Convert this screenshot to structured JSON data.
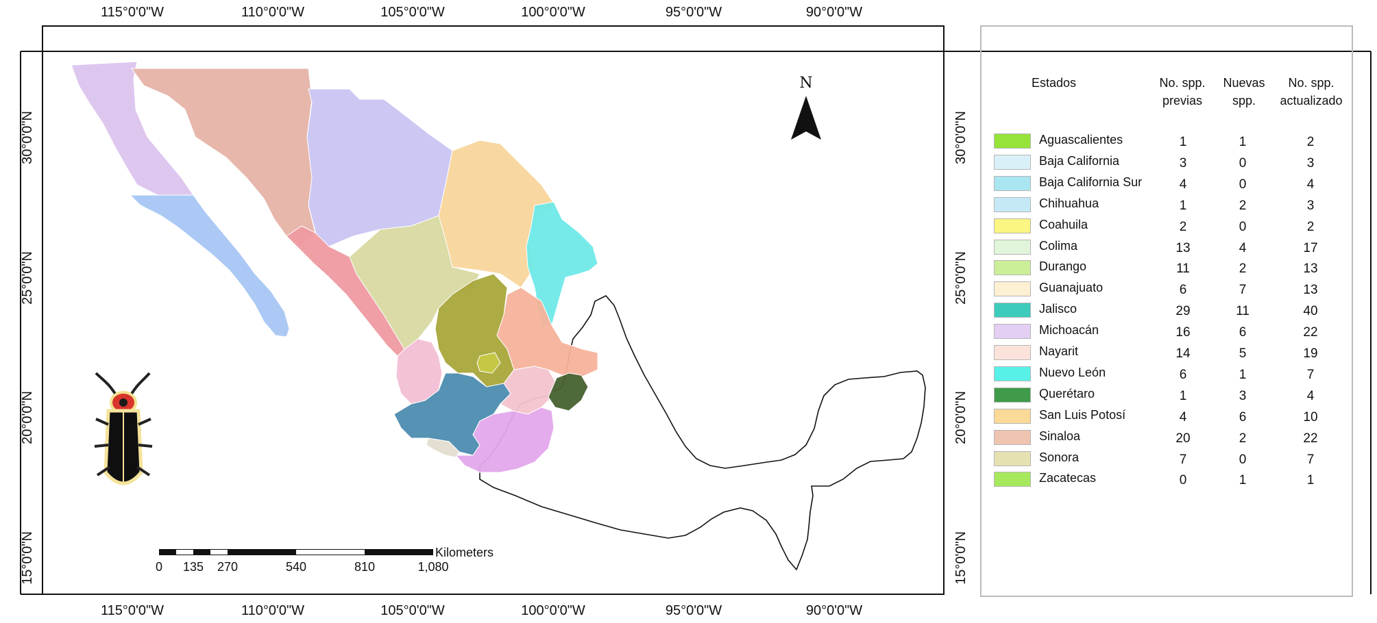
{
  "map": {
    "lon_labels": [
      "115°0'0\"W",
      "110°0'0\"W",
      "105°0'0\"W",
      "100°0'0\"W",
      "95°0'0\"W",
      "90°0'0\"W"
    ],
    "lat_labels": [
      "30°0'0\"N",
      "25°0'0\"N",
      "20°0'0\"N",
      "15°0'0\"N"
    ],
    "north_label": "N",
    "scale_bar": {
      "unit_label": "Kilometers",
      "ticks": [
        "0",
        "135",
        "270",
        "540",
        "810",
        "1,080"
      ]
    }
  },
  "legend": {
    "headers": {
      "estados": "Estados",
      "previas": [
        "No. spp.",
        "previas"
      ],
      "nuevas": [
        "Nuevas",
        "spp."
      ],
      "actualizado": [
        "No. spp.",
        "actualizado"
      ]
    },
    "rows": [
      {
        "state": "Aguascalientes",
        "previas": "1",
        "nuevas": "1",
        "actualizado": "2",
        "color": "#96e33a"
      },
      {
        "state": "Baja California",
        "previas": "3",
        "nuevas": "0",
        "actualizado": "3",
        "color": "#daf0f8"
      },
      {
        "state": "Baja California Sur",
        "previas": "4",
        "nuevas": "0",
        "actualizado": "4",
        "color": "#a9e6f2"
      },
      {
        "state": "Chihuahua",
        "previas": "1",
        "nuevas": "2",
        "actualizado": "3",
        "color": "#c6e9f8"
      },
      {
        "state": "Coahuila",
        "previas": "2",
        "nuevas": "0",
        "actualizado": "2",
        "color": "#fbf581"
      },
      {
        "state": "Colima",
        "previas": "13",
        "nuevas": "4",
        "actualizado": "17",
        "color": "#e0f5da"
      },
      {
        "state": "Durango",
        "previas": "11",
        "nuevas": "2",
        "actualizado": "13",
        "color": "#cbef98"
      },
      {
        "state": "Guanajuato",
        "previas": "6",
        "nuevas": "7",
        "actualizado": "13",
        "color": "#fdf0d3"
      },
      {
        "state": "Jalisco",
        "previas": "29",
        "nuevas": "11",
        "actualizado": "40",
        "color": "#3dcbbc"
      },
      {
        "state": "Michoacán",
        "previas": "16",
        "nuevas": "6",
        "actualizado": "22",
        "color": "#e3cff4"
      },
      {
        "state": "Nayarit",
        "previas": "14",
        "nuevas": "5",
        "actualizado": "19",
        "color": "#fbe3dc"
      },
      {
        "state": "Nuevo León",
        "previas": "6",
        "nuevas": "1",
        "actualizado": "7",
        "color": "#57f1e8"
      },
      {
        "state": "Querétaro",
        "previas": "1",
        "nuevas": "3",
        "actualizado": "4",
        "color": "#3f9b49"
      },
      {
        "state": "San Luis Potosí",
        "previas": "4",
        "nuevas": "6",
        "actualizado": "10",
        "color": "#fbd996"
      },
      {
        "state": "Sinaloa",
        "previas": "20",
        "nuevas": "2",
        "actualizado": "22",
        "color": "#efc4b1"
      },
      {
        "state": "Sonora",
        "previas": "7",
        "nuevas": "0",
        "actualizado": "7",
        "color": "#e6e1b1"
      },
      {
        "state": "Zacatecas",
        "previas": "0",
        "nuevas": "1",
        "actualizado": "1",
        "color": "#a6e95c"
      }
    ]
  },
  "map_fills": {
    "baja_california": "#dcc4ee",
    "baja_california_sur": "#a7c6f3",
    "sonora": "#e6b3a8",
    "chihuahua": "#c9c5f2",
    "coahuila": "#f8d59c",
    "nuevo_leon": "#6fe9e8",
    "sinaloa": "#ee9aa0",
    "durango": "#d8d9a1",
    "zacatecas": "#a9a63a",
    "san_luis_potosi": "#f7b29a",
    "aguascalientes": "#c6c846",
    "nayarit": "#f2bfd4",
    "jalisco": "#4c8cb0",
    "guanajuato": "#f3c4cd",
    "queretaro": "#46612f",
    "michoacan": "#e3a8eb",
    "colima": "#e3ddd0",
    "sea_of_cortez_gap": "#ffffff"
  }
}
